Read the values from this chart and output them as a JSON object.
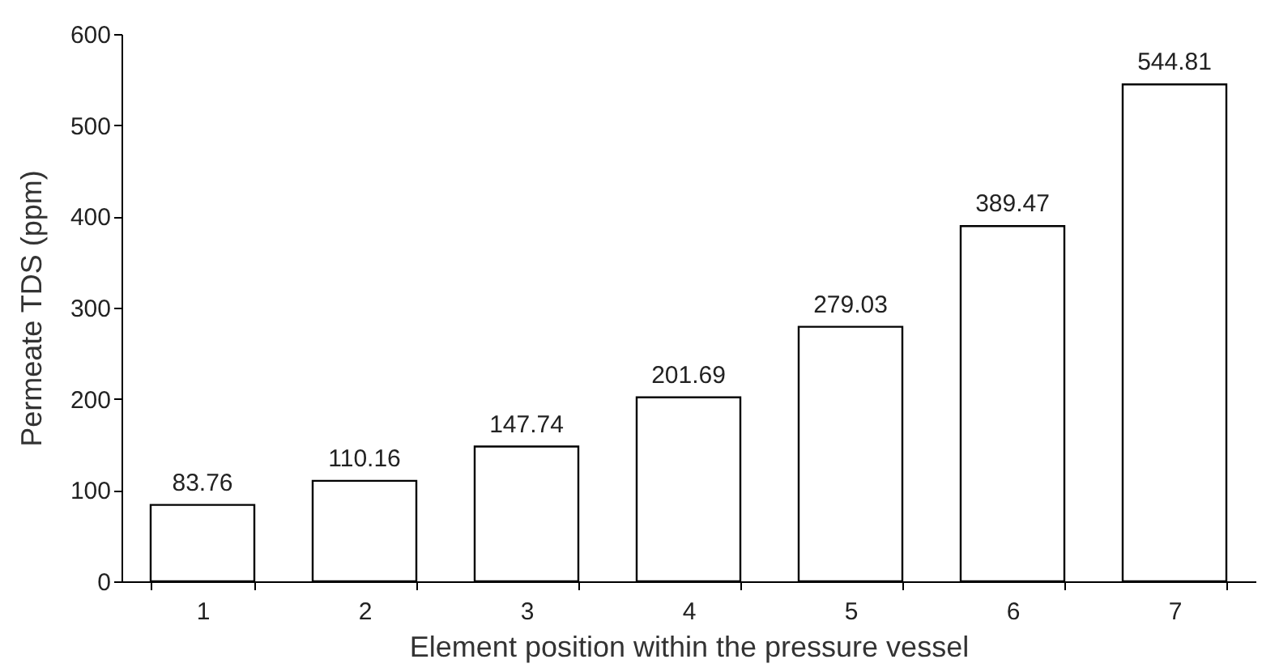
{
  "chart_data": {
    "type": "bar",
    "xlabel": "Element position within the pressure vessel",
    "ylabel": "Permeate TDS (ppm)",
    "categories": [
      "1",
      "2",
      "3",
      "4",
      "5",
      "6",
      "7"
    ],
    "values": [
      83.76,
      110.16,
      147.74,
      201.69,
      279.03,
      389.47,
      544.81
    ],
    "color": "#ffffff",
    "ylim": [
      0,
      600
    ],
    "yticks": [
      0,
      100,
      200,
      300,
      400,
      500,
      600
    ],
    "grid": false,
    "data_labels": true
  }
}
